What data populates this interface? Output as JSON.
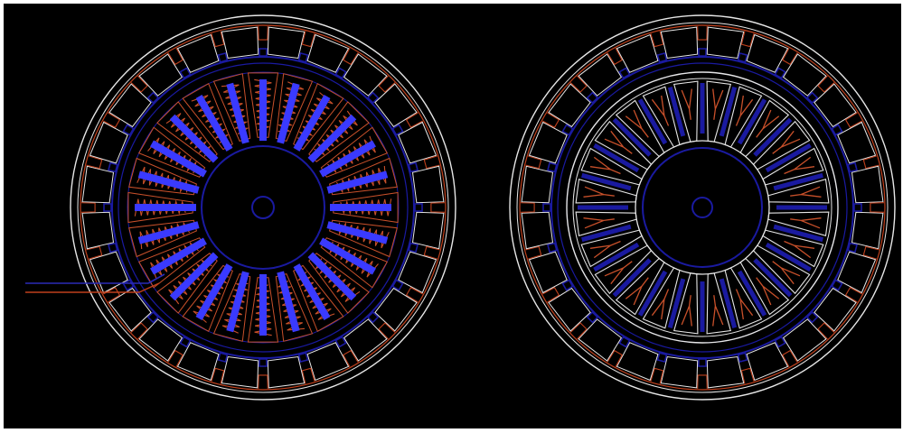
{
  "drawing": {
    "background": "#000000",
    "frame_color": "#ffffff",
    "colors": {
      "outline_white": "#e6e6e6",
      "housing_red": "#c0401c",
      "core_blue": "#1a1aa0",
      "coil_blue": "#3a3aff",
      "winding_red": "#c8502a",
      "lead_blue": "#2a2ab8",
      "lead_red": "#c0401c"
    },
    "views": [
      {
        "name": "wound-stator-view",
        "shows_windings": true,
        "slot_count": 24,
        "outer_segment_count": 24
      },
      {
        "name": "stator-core-view",
        "shows_windings": false,
        "slot_count": 24,
        "outer_segment_count": 24
      }
    ]
  }
}
